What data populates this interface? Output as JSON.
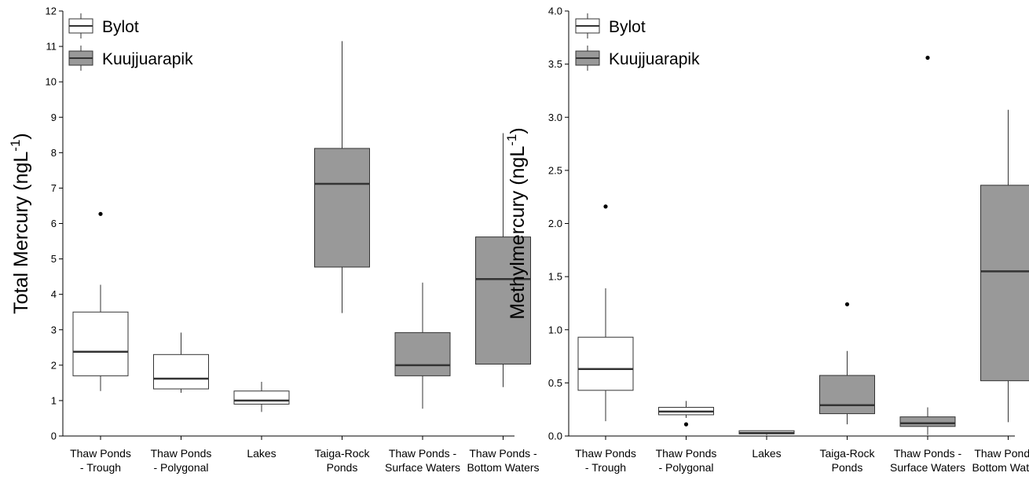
{
  "colors": {
    "bylot": "#ffffff",
    "kuujjuarapik": "#999999",
    "stroke": "#333333",
    "median": "#333333"
  },
  "chart_data": [
    {
      "type": "boxplot",
      "ylabel": "Total Mercury (ngL",
      "ylabel_sup": "-1",
      "ylabel_close": ")",
      "ylim": [
        0,
        12
      ],
      "yticks": [
        0,
        1,
        2,
        3,
        4,
        5,
        6,
        7,
        8,
        9,
        10,
        11,
        12
      ],
      "ytick_labels": [
        "0",
        "1",
        "2",
        "3",
        "4",
        "5",
        "6",
        "7",
        "8",
        "9",
        "10",
        "11",
        "12"
      ],
      "legend": {
        "placement": "top-left",
        "entries": [
          {
            "label": "Bylot",
            "series": "bylot"
          },
          {
            "label": "Kuujjuarapik",
            "series": "kuujjuarapik"
          }
        ]
      },
      "categories": [
        [
          "Thaw Ponds",
          "- Trough"
        ],
        [
          "Thaw Ponds",
          "- Polygonal"
        ],
        [
          "Lakes"
        ],
        [
          "Taiga-Rock",
          "Ponds"
        ],
        [
          "Thaw Ponds -",
          "Surface Waters"
        ],
        [
          "Thaw Ponds -",
          "Bottom Waters"
        ]
      ],
      "boxes": [
        {
          "series": "bylot",
          "whisker_low": 1.27,
          "q1": 1.7,
          "median": 2.38,
          "q3": 3.5,
          "whisker_high": 4.27,
          "outliers": [
            6.27
          ]
        },
        {
          "series": "bylot",
          "whisker_low": 1.22,
          "q1": 1.33,
          "median": 1.62,
          "q3": 2.3,
          "whisker_high": 2.92,
          "outliers": []
        },
        {
          "series": "bylot",
          "whisker_low": 0.68,
          "q1": 0.9,
          "median": 1.0,
          "q3": 1.27,
          "whisker_high": 1.53,
          "outliers": []
        },
        {
          "series": "kuujjuarapik",
          "whisker_low": 3.47,
          "q1": 4.77,
          "median": 7.12,
          "q3": 8.12,
          "whisker_high": 11.15,
          "outliers": []
        },
        {
          "series": "kuujjuarapik",
          "whisker_low": 0.77,
          "q1": 1.7,
          "median": 2.0,
          "q3": 2.92,
          "whisker_high": 4.33,
          "outliers": []
        },
        {
          "series": "kuujjuarapik",
          "whisker_low": 1.38,
          "q1": 2.03,
          "median": 4.43,
          "q3": 5.62,
          "whisker_high": 8.55,
          "outliers": []
        }
      ]
    },
    {
      "type": "boxplot",
      "ylabel": "Methylmercury (ngL",
      "ylabel_sup": "-1",
      "ylabel_close": ")",
      "ylim": [
        0,
        4
      ],
      "yticks": [
        0,
        0.5,
        1,
        1.5,
        2,
        2.5,
        3,
        3.5,
        4
      ],
      "ytick_labels": [
        "0.0",
        "0.5",
        "1.0",
        "1.5",
        "2.0",
        "2.5",
        "3.0",
        "3.5",
        "4.0"
      ],
      "legend": {
        "placement": "top-left",
        "entries": [
          {
            "label": "Bylot",
            "series": "bylot"
          },
          {
            "label": "Kuujjuarapik",
            "series": "kuujjuarapik"
          }
        ]
      },
      "categories": [
        [
          "Thaw Ponds",
          "- Trough"
        ],
        [
          "Thaw Ponds",
          "- Polygonal"
        ],
        [
          "Lakes"
        ],
        [
          "Taiga-Rock",
          "Ponds"
        ],
        [
          "Thaw Ponds -",
          "Surface Waters"
        ],
        [
          "Thaw Ponds -",
          "Bottom Waters"
        ]
      ],
      "boxes": [
        {
          "series": "bylot",
          "whisker_low": 0.14,
          "q1": 0.43,
          "median": 0.63,
          "q3": 0.93,
          "whisker_high": 1.39,
          "outliers": [
            2.16
          ]
        },
        {
          "series": "bylot",
          "whisker_low": 0.17,
          "q1": 0.2,
          "median": 0.23,
          "q3": 0.27,
          "whisker_high": 0.33,
          "outliers": [
            0.11
          ]
        },
        {
          "series": "bylot",
          "whisker_low": 0.01,
          "q1": 0.02,
          "median": 0.03,
          "q3": 0.05,
          "whisker_high": 0.05,
          "outliers": []
        },
        {
          "series": "kuujjuarapik",
          "whisker_low": 0.11,
          "q1": 0.21,
          "median": 0.29,
          "q3": 0.57,
          "whisker_high": 0.8,
          "outliers": [
            1.24
          ]
        },
        {
          "series": "kuujjuarapik",
          "whisker_low": 0.01,
          "q1": 0.09,
          "median": 0.12,
          "q3": 0.18,
          "whisker_high": 0.27,
          "outliers": [
            3.56
          ]
        },
        {
          "series": "kuujjuarapik",
          "whisker_low": 0.13,
          "q1": 0.52,
          "median": 1.55,
          "q3": 2.36,
          "whisker_high": 3.07,
          "outliers": []
        }
      ]
    }
  ]
}
